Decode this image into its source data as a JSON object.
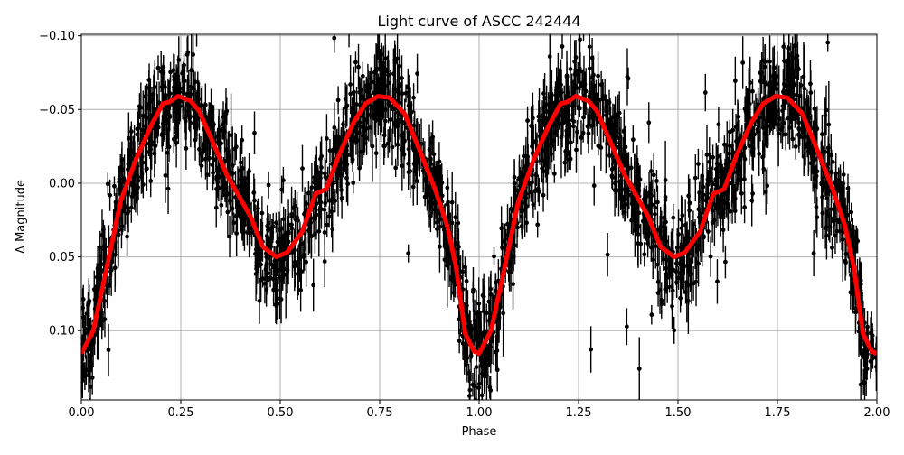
{
  "chart_data": {
    "type": "scatter",
    "title": "Light curve of ASCC 242444",
    "xlabel": "Phase",
    "ylabel": "Δ Magnitude",
    "xlim": [
      0.0,
      2.0
    ],
    "ylim": [
      0.147,
      -0.101
    ],
    "y_inverted": true,
    "grid": true,
    "xticks": [
      "0.00",
      "0.25",
      "0.50",
      "0.75",
      "1.00",
      "1.25",
      "1.50",
      "1.75",
      "2.00"
    ],
    "yticks": [
      "−0.10",
      "−0.05",
      "0.00",
      "0.05",
      "0.10"
    ],
    "xtick_values": [
      0,
      0.25,
      0.5,
      0.75,
      1.0,
      1.25,
      1.5,
      1.75,
      2.0
    ],
    "ytick_values": [
      -0.1,
      -0.05,
      0.0,
      0.05,
      0.1
    ],
    "colors": {
      "points": "#000000",
      "model": "#ff0000",
      "grid": "#b0b0b0"
    },
    "observations": {
      "marker": "dot with error bars",
      "scatter_about_model": 0.02
    },
    "model_curve": {
      "x": [
        0.0,
        0.03,
        0.061,
        0.099,
        0.137,
        0.175,
        0.205,
        0.221,
        0.243,
        0.274,
        0.296,
        0.327,
        0.365,
        0.403,
        0.426,
        0.456,
        0.49,
        0.517,
        0.555,
        0.589,
        0.616,
        0.646,
        0.684,
        0.714,
        0.745,
        0.775,
        0.813,
        0.851,
        0.889,
        0.92,
        0.942,
        0.965,
        0.987,
        1.0,
        1.03,
        1.061,
        1.099,
        1.137,
        1.175,
        1.205,
        1.221,
        1.243,
        1.274,
        1.296,
        1.327,
        1.365,
        1.403,
        1.426,
        1.456,
        1.49,
        1.517,
        1.555,
        1.589,
        1.616,
        1.646,
        1.684,
        1.714,
        1.745,
        1.775,
        1.813,
        1.851,
        1.889,
        1.92,
        1.942,
        1.965,
        1.987,
        2.0
      ],
      "y": [
        0.1155,
        0.1,
        0.061,
        0.012,
        -0.016,
        -0.039,
        -0.054,
        -0.055,
        -0.059,
        -0.056,
        -0.049,
        -0.03,
        -0.006,
        0.012,
        0.023,
        0.043,
        0.05,
        0.047,
        0.033,
        0.007,
        0.004,
        -0.018,
        -0.041,
        -0.054,
        -0.059,
        -0.058,
        -0.047,
        -0.022,
        0.004,
        0.029,
        0.057,
        0.102,
        0.114,
        0.1155,
        0.1,
        0.061,
        0.012,
        -0.016,
        -0.039,
        -0.054,
        -0.055,
        -0.059,
        -0.056,
        -0.049,
        -0.03,
        -0.006,
        0.012,
        0.023,
        0.043,
        0.05,
        0.047,
        0.033,
        0.007,
        0.004,
        -0.018,
        -0.041,
        -0.054,
        -0.059,
        -0.058,
        -0.047,
        -0.022,
        0.004,
        0.029,
        0.057,
        0.102,
        0.114,
        0.1155
      ]
    }
  }
}
